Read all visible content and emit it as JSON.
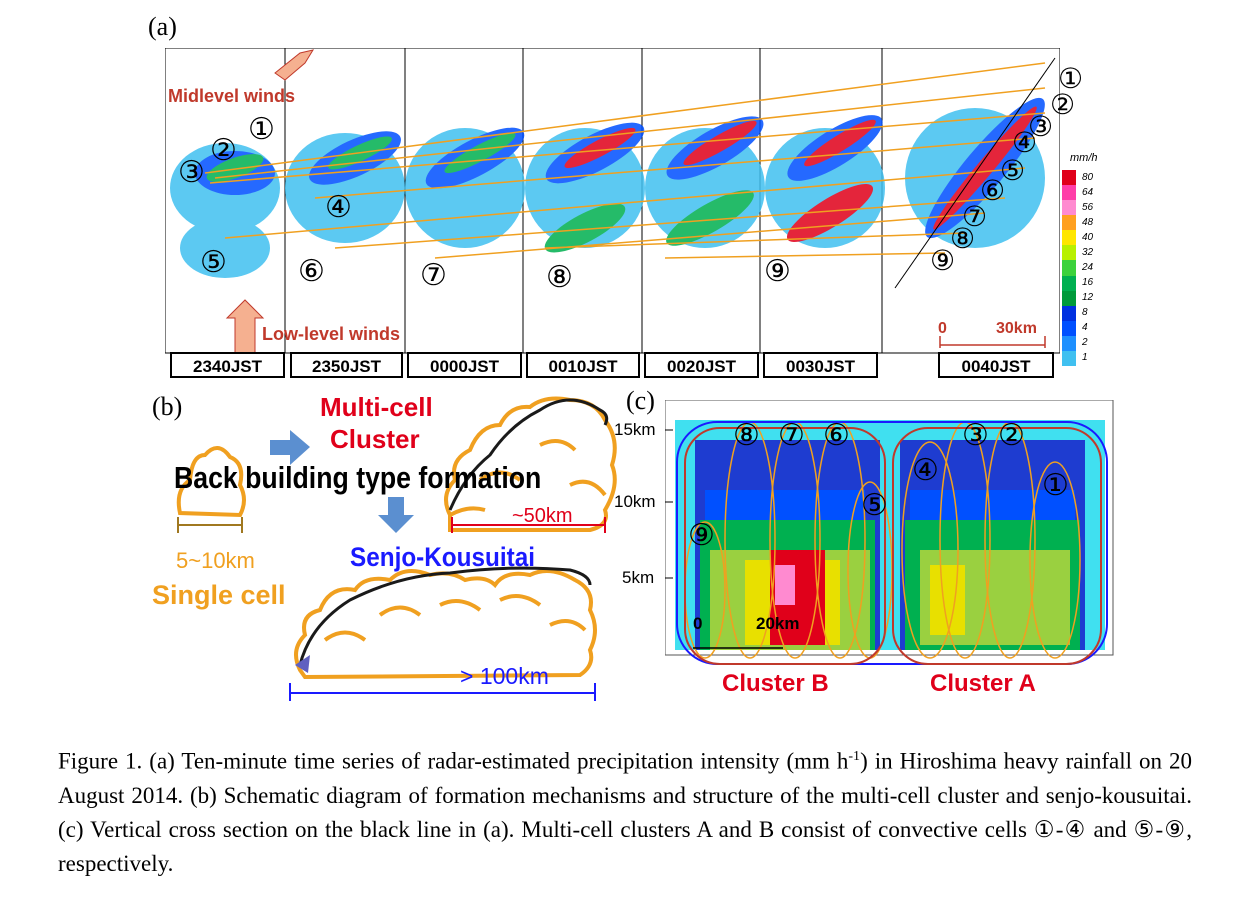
{
  "panels": {
    "a": "(a)",
    "b": "(b)",
    "c": "(c)"
  },
  "panel_a": {
    "midlevel_winds": "Midlevel winds",
    "lowlevel_winds": "Low-level winds",
    "times": [
      "2340JST",
      "2350JST",
      "0000JST",
      "0010JST",
      "0020JST",
      "0030JST",
      "0040JST"
    ],
    "scale_zero": "0",
    "scale_km": "30km",
    "colorbar_unit": "mm/h",
    "colorbar_ticks": [
      "80",
      "64",
      "56",
      "48",
      "40",
      "32",
      "24",
      "16",
      "12",
      "8",
      "4",
      "2",
      "1"
    ],
    "colorbar_colors": [
      "#e0001a",
      "#ff3ea8",
      "#ff8ad0",
      "#ffa020",
      "#ffe600",
      "#b8f000",
      "#3cd23c",
      "#00b050",
      "#009a3a",
      "#0030e0",
      "#0050ff",
      "#1e90ff",
      "#40c0f0"
    ],
    "cell_numbers": [
      "①",
      "②",
      "③",
      "④",
      "⑤",
      "⑥",
      "⑦",
      "⑧",
      "⑨"
    ]
  },
  "panel_b": {
    "multi_cell_line1": "Multi-cell",
    "multi_cell_line2": "Cluster",
    "back_building": "Back building type formation",
    "size_50": "~50km",
    "senjo": "Senjo-Kousuitai",
    "size_single": "5~10km",
    "single_cell": "Single cell",
    "size_100": "> 100km"
  },
  "panel_c": {
    "y_ticks": [
      "15km",
      "10km",
      "5km"
    ],
    "x_zero": "0",
    "x_scale": "20km",
    "cluster_b": "Cluster B",
    "cluster_a": "Cluster A",
    "cell_labels": [
      "⑧",
      "⑦",
      "⑥",
      "③",
      "②",
      "④",
      "①",
      "⑤",
      "⑨"
    ]
  },
  "caption": {
    "line1": "Figure 1. (a) Ten-minute time series of radar-estimated precipitation intensity (mm h",
    "sup": "-1",
    "line1_end": ") in Hiroshima heavy rainfall on 20 August 2014. (b) Schematic diagram of formation mechanisms and structure of the multi-cell cluster and senjo-kousuitai. (c) Vertical cross section on the black line in (a). Multi-cell clusters A and B consist of convective cells ①-④ and ⑤-⑨, respectively."
  }
}
